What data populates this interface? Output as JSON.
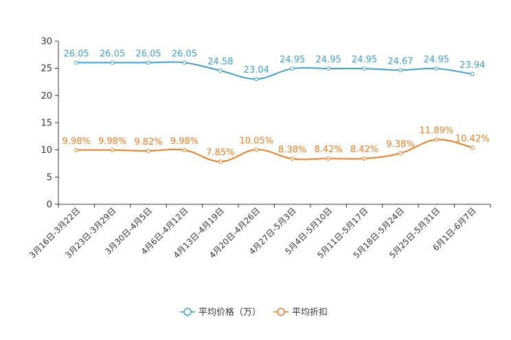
{
  "chart_data": {
    "type": "line",
    "categories": [
      "3月16日-3月22日",
      "3月23日-3月29日",
      "3月30日-4月5日",
      "4月6日-4月12日",
      "4月13日-4月19日",
      "4月20日-4月26日",
      "4月27日-5月3日",
      "5月4日-5月10日",
      "5月11日-5月17日",
      "5月18日-5月24日",
      "5月25日-5月31日",
      "6月1日-6月7日"
    ],
    "ylim": [
      0,
      30
    ],
    "yticks": [
      "0",
      "5",
      "10",
      "15",
      "20",
      "25",
      "30"
    ],
    "series": [
      {
        "name": "平均价格（万）",
        "color": "#3a9fd0",
        "values": [
          26.05,
          26.05,
          26.05,
          26.05,
          24.58,
          23.04,
          24.95,
          24.95,
          24.95,
          24.67,
          24.95,
          23.94
        ],
        "labels": [
          "26.05",
          "26.05",
          "26.05",
          "26.05",
          "24.58",
          "23.04",
          "24.95",
          "24.95",
          "24.95",
          "24.67",
          "24.95",
          "23.94"
        ]
      },
      {
        "name": "平均折扣",
        "color": "#f07b1e",
        "values": [
          9.98,
          9.98,
          9.82,
          9.98,
          7.85,
          10.05,
          8.38,
          8.42,
          8.42,
          9.38,
          11.89,
          10.42
        ],
        "labels": [
          "9.98%",
          "9.98%",
          "9.82%",
          "9.98%",
          "7.85%",
          "10.05%",
          "8.38%",
          "8.42%",
          "8.42%",
          "9.38%",
          "11.89%",
          "10.42%"
        ]
      }
    ]
  }
}
